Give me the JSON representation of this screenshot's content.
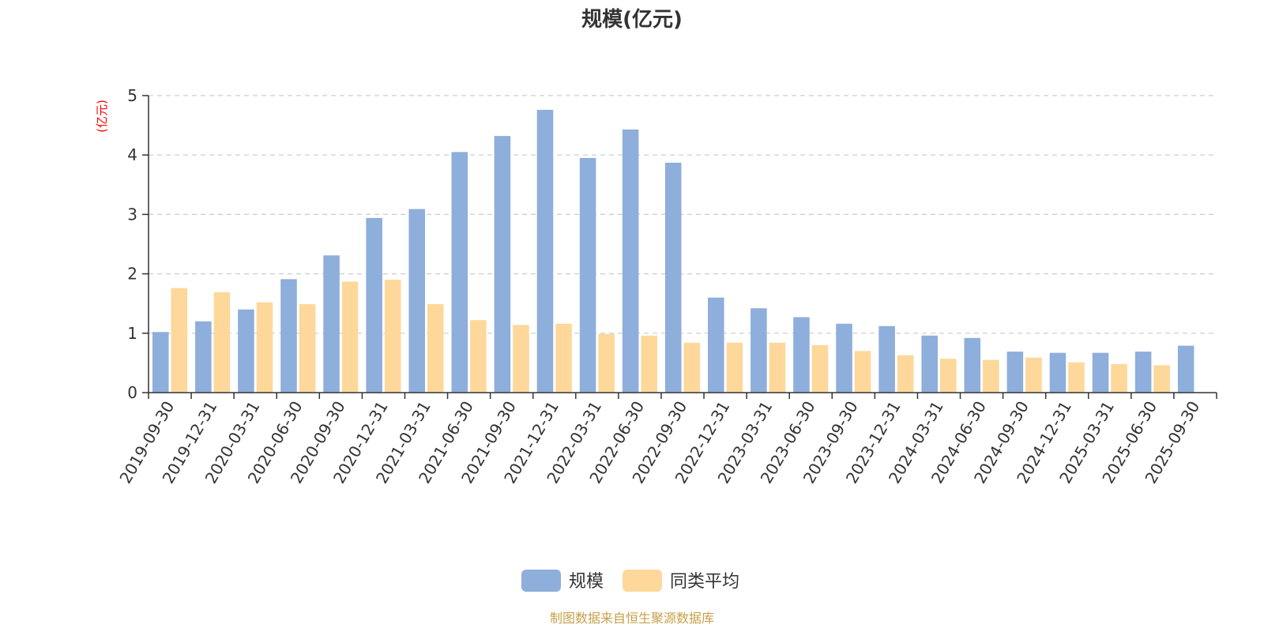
{
  "chart_data": {
    "type": "bar",
    "title": "规模(亿元)",
    "ylabel": "(亿元)",
    "xlabel": "",
    "ylim": [
      0,
      5
    ],
    "yticks": [
      0,
      1,
      2,
      3,
      4,
      5
    ],
    "grid": true,
    "legend_position": "bottom-center",
    "categories": [
      "2019-09-30",
      "2019-12-31",
      "2020-03-31",
      "2020-06-30",
      "2020-09-30",
      "2020-12-31",
      "2021-03-31",
      "2021-06-30",
      "2021-09-30",
      "2021-12-31",
      "2022-03-31",
      "2022-06-30",
      "2022-09-30",
      "2022-12-31",
      "2023-03-31",
      "2023-06-30",
      "2023-09-30",
      "2023-12-31",
      "2024-03-31",
      "2024-06-30",
      "2024-09-30",
      "2024-12-31",
      "2025-03-31",
      "2025-06-30",
      "2025-09-30"
    ],
    "series": [
      {
        "name": "规模",
        "color": "#8eaedb",
        "values": [
          1.02,
          1.2,
          1.4,
          1.91,
          2.31,
          2.94,
          3.09,
          4.05,
          4.32,
          4.76,
          3.95,
          4.43,
          3.87,
          1.6,
          1.42,
          1.27,
          1.16,
          1.12,
          0.96,
          0.92,
          0.69,
          0.67,
          0.67,
          0.69,
          0.79
        ]
      },
      {
        "name": "同类平均",
        "color": "#fdd89a",
        "values": [
          1.76,
          1.69,
          1.52,
          1.49,
          1.87,
          1.9,
          1.49,
          1.22,
          1.14,
          1.16,
          0.99,
          0.96,
          0.84,
          0.84,
          0.84,
          0.8,
          0.7,
          0.63,
          0.57,
          0.55,
          0.59,
          0.51,
          0.48,
          0.46,
          null
        ]
      }
    ]
  },
  "footer": {
    "source_text": "制图数据来自恒生聚源数据库",
    "source_color": "#c8a04a"
  }
}
